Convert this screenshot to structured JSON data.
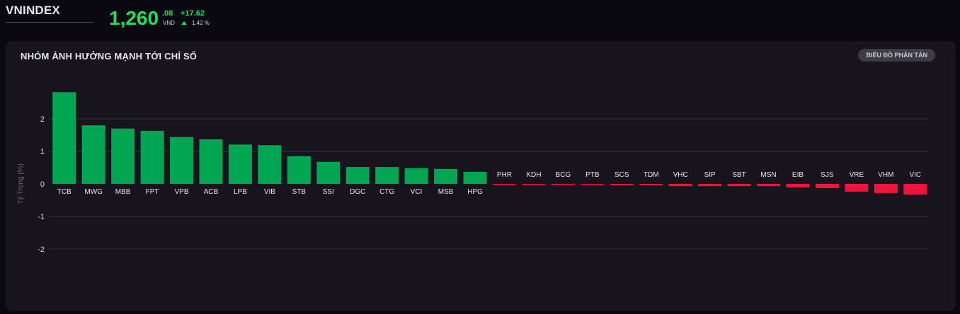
{
  "header": {
    "index_name": "VNINDEX",
    "price_main": "1,260",
    "price_decimal": ".08",
    "currency": "VND",
    "change_abs": "+17.62",
    "change_pct": "1.42 %",
    "trend_icon": "triangle-up-icon"
  },
  "panel": {
    "title": "NHÓM ẢNH HƯỞNG MẠNH TỚI CHỈ SỐ",
    "scatter_button": "BIỂU ĐỒ PHÂN TÁN"
  },
  "colors": {
    "positive": "#00a651",
    "negative": "#f0143c",
    "accent": "#1ee05a"
  },
  "chart_data": {
    "type": "bar",
    "title": "",
    "ylabel": "Tỷ Trọng (%)",
    "xlabel": "",
    "ylim": [
      -2.4,
      2.9
    ],
    "yticks": [
      2,
      1,
      0,
      -1,
      -2
    ],
    "grid": true,
    "categories": [
      "TCB",
      "MWG",
      "MBB",
      "FPT",
      "VPB",
      "ACB",
      "LPB",
      "VIB",
      "STB",
      "SSI",
      "DGC",
      "CTG",
      "VCI",
      "MSB",
      "HPG",
      "PHR",
      "KDH",
      "BCG",
      "PTB",
      "SCS",
      "TDM",
      "VHC",
      "SIP",
      "SBT",
      "MSN",
      "EIB",
      "SJS",
      "VRE",
      "VHM",
      "VIC"
    ],
    "values": [
      2.82,
      1.8,
      1.7,
      1.63,
      1.44,
      1.37,
      1.21,
      1.19,
      0.85,
      0.68,
      0.52,
      0.52,
      0.48,
      0.46,
      0.37,
      -0.03,
      -0.03,
      -0.03,
      -0.03,
      -0.04,
      -0.04,
      -0.07,
      -0.07,
      -0.07,
      -0.07,
      -0.11,
      -0.13,
      -0.24,
      -0.28,
      -0.33
    ]
  }
}
